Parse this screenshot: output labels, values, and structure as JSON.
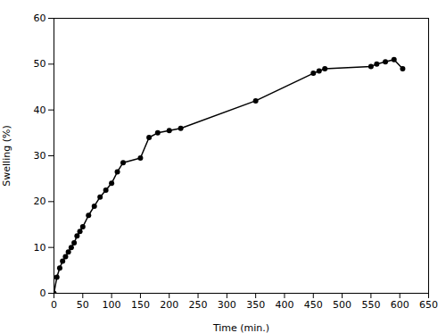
{
  "chart_data": {
    "type": "line",
    "xlabel": "Time (min.)",
    "ylabel": "Swelling (%)",
    "x": [
      0,
      5,
      10,
      15,
      20,
      25,
      30,
      35,
      40,
      45,
      50,
      60,
      70,
      80,
      90,
      100,
      110,
      120,
      150,
      165,
      180,
      200,
      220,
      350,
      450,
      460,
      470,
      550,
      560,
      575,
      590,
      605
    ],
    "values": [
      0,
      3.5,
      5.5,
      7,
      8,
      9,
      10,
      11,
      12.5,
      13.5,
      14.5,
      17,
      19,
      21,
      22.5,
      24,
      26.5,
      28.5,
      29.5,
      34,
      35,
      35.5,
      36,
      42,
      48,
      48.5,
      49,
      49.5,
      50,
      50.5,
      51,
      49
    ],
    "color": "#000000",
    "marker": "circle",
    "xlim": [
      0,
      650
    ],
    "ylim": [
      0,
      60
    ],
    "xticks": [
      0,
      50,
      100,
      150,
      200,
      250,
      300,
      350,
      400,
      450,
      500,
      550,
      600,
      650
    ],
    "yticks": [
      0,
      10,
      20,
      30,
      40,
      50,
      60
    ],
    "grid": false
  }
}
